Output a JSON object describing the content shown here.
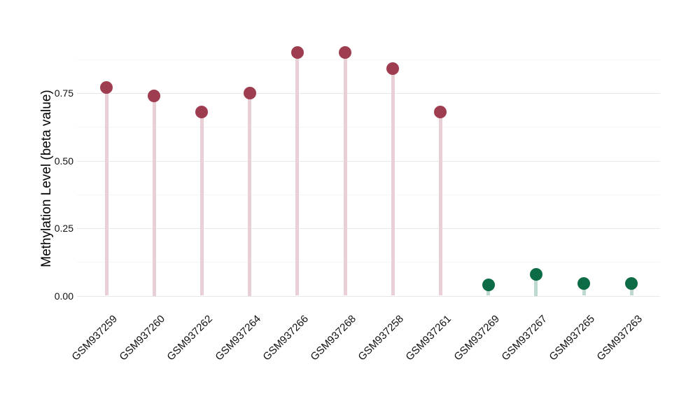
{
  "chart_data": {
    "type": "lollipop",
    "title": "",
    "ylabel": "Methylation Level (beta value)",
    "xlabel": "",
    "categories": [
      "GSM937259",
      "GSM937260",
      "GSM937262",
      "GSM937264",
      "GSM937266",
      "GSM937268",
      "GSM937258",
      "GSM937261",
      "GSM937269",
      "GSM937267",
      "GSM937265",
      "GSM937263"
    ],
    "series": [
      {
        "name": "Methylation Level (beta value)",
        "values": [
          0.77,
          0.74,
          0.68,
          0.75,
          0.9,
          0.9,
          0.84,
          0.68,
          0.04,
          0.08,
          0.045,
          0.045
        ]
      }
    ],
    "point_groups": [
      "high",
      "high",
      "high",
      "high",
      "high",
      "high",
      "high",
      "high",
      "low",
      "low",
      "low",
      "low"
    ],
    "group_colors": {
      "high_dot": "#9e3d4f",
      "high_stem": "#e9d0d6",
      "low_dot": "#0d6b46",
      "low_stem": "#bed9cf"
    },
    "ytick_labels": [
      "0.00",
      "0.25",
      "0.50",
      "0.75"
    ],
    "ytick_values": [
      0,
      0.25,
      0.5,
      0.75
    ],
    "minor_ytick_values": [
      0.125,
      0.375,
      0.625,
      0.875
    ],
    "ylim": [
      -0.045,
      0.975
    ],
    "grid": "horizontal-only",
    "legend": "none",
    "colors": {
      "background": "#ffffff",
      "major_grid": "#e8e8e8",
      "minor_grid": "#f5f5f5",
      "text": "#111111"
    }
  }
}
